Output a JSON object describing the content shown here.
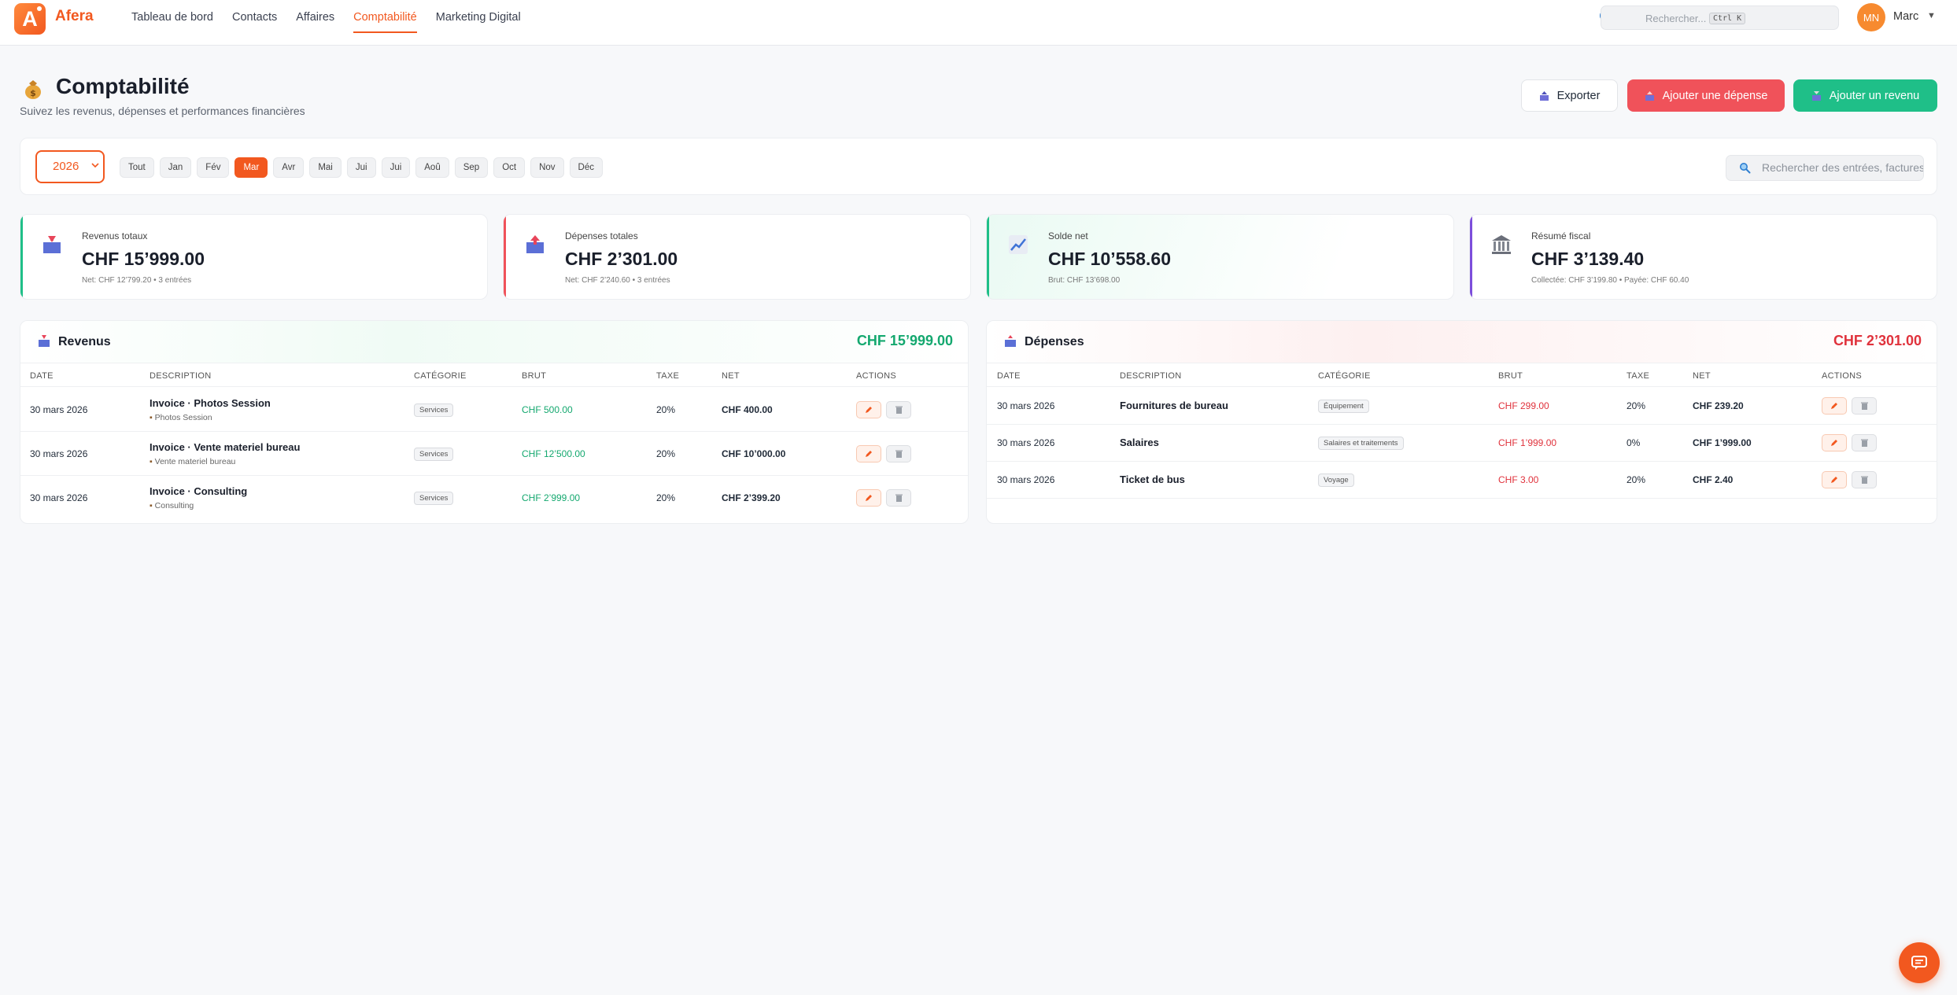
{
  "app": {
    "brand": "Afera",
    "logo_letter": "A"
  },
  "nav": [
    "Tableau de bord",
    "Contacts",
    "Affaires",
    "Comptabilité",
    "Marketing Digital"
  ],
  "nav_active": "Comptabilité",
  "top_search": {
    "placeholder": "Rechercher...",
    "shortcut": "Ctrl K"
  },
  "user": {
    "initials": "MN",
    "name": "Marc"
  },
  "page": {
    "title": "Comptabilité",
    "subtitle": "Suivez les revenus, dépenses et performances financières"
  },
  "actions": {
    "export": "Exporter",
    "add_expense": "Ajouter une dépense",
    "add_revenue": "Ajouter un revenu"
  },
  "filters": {
    "year": "2026",
    "months": [
      "Tout",
      "Jan",
      "Fév",
      "Mar",
      "Avr",
      "Mai",
      "Jui",
      "Jui",
      "Aoû",
      "Sep",
      "Oct",
      "Nov",
      "Déc"
    ],
    "active_month": "Mar",
    "search_placeholder": "Rechercher des entrées, factures..."
  },
  "stats": [
    {
      "label": "Revenus totaux",
      "value": "CHF 15’999.00",
      "sub": "Net: CHF 12’799.20 • 3 entrées",
      "accent": "#1fbf88"
    },
    {
      "label": "Dépenses totales",
      "value": "CHF 2’301.00",
      "sub": "Net: CHF 2’240.60 • 3 entrées",
      "accent": "#f0525a"
    },
    {
      "label": "Solde net",
      "value": "CHF 10’558.60",
      "sub": "Brut: CHF 13’698.00",
      "accent": "#1fbf88"
    },
    {
      "label": "Résumé fiscal",
      "value": "CHF 3’139.40",
      "sub": "Collectée: CHF 3’199.80 • Payée: CHF 60.40",
      "accent": "#7c4ddb"
    }
  ],
  "revenues": {
    "title": "Revenus",
    "total": "CHF 15’999.00",
    "columns": [
      "Date",
      "Description",
      "Catégorie",
      "Brut",
      "Taxe",
      "Net",
      "Actions"
    ],
    "rows": [
      {
        "date": "30 mars 2026",
        "desc": "Invoice · Photos Session",
        "sub": "Photos Session",
        "cat": "Services",
        "brut": "CHF 500.00",
        "tax": "20%",
        "net": "CHF 400.00"
      },
      {
        "date": "30 mars 2026",
        "desc": "Invoice · Vente materiel bureau",
        "sub": "Vente materiel bureau",
        "cat": "Services",
        "brut": "CHF 12’500.00",
        "tax": "20%",
        "net": "CHF 10’000.00"
      },
      {
        "date": "30 mars 2026",
        "desc": "Invoice · Consulting",
        "sub": "Consulting",
        "cat": "Services",
        "brut": "CHF 2’999.00",
        "tax": "20%",
        "net": "CHF 2’399.20"
      }
    ]
  },
  "expenses": {
    "title": "Dépenses",
    "total": "CHF 2’301.00",
    "columns": [
      "Date",
      "Description",
      "Catégorie",
      "Brut",
      "Taxe",
      "Net",
      "Actions"
    ],
    "rows": [
      {
        "date": "30 mars 2026",
        "desc": "Fournitures de bureau",
        "cat": "Équipement",
        "brut": "CHF 299.00",
        "tax": "20%",
        "net": "CHF 239.20"
      },
      {
        "date": "30 mars 2026",
        "desc": "Salaires",
        "cat": "Salaires et traitements",
        "brut": "CHF 1’999.00",
        "tax": "0%",
        "net": "CHF 1’999.00"
      },
      {
        "date": "30 mars 2026",
        "desc": "Ticket de bus",
        "cat": "Voyage",
        "brut": "CHF 3.00",
        "tax": "20%",
        "net": "CHF 2.40"
      }
    ]
  }
}
